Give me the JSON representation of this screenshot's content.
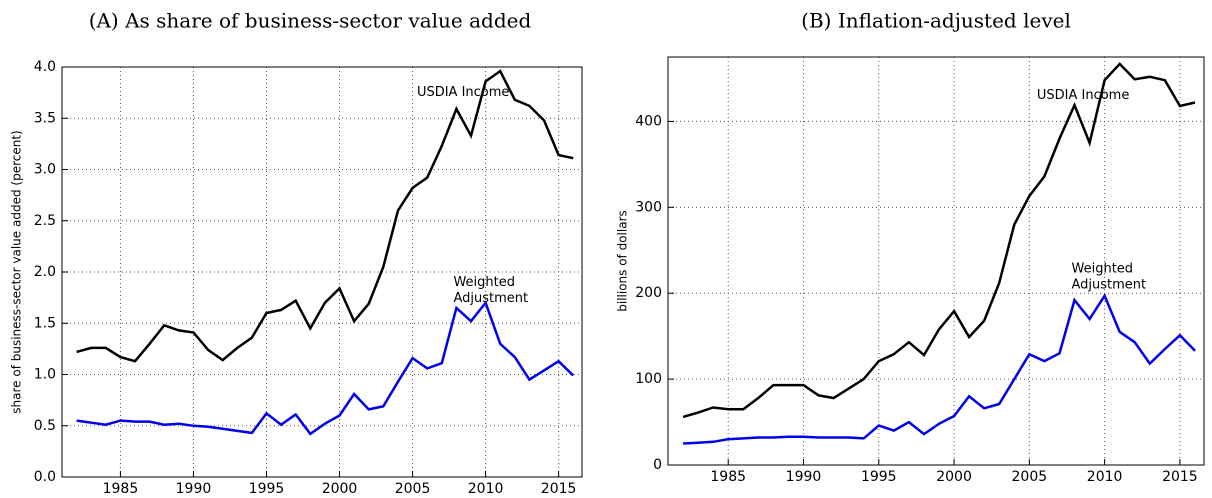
{
  "chart_data": [
    {
      "type": "line",
      "title": "(A) As share of business-sector value added",
      "y_label": "share of business-sector value added (percent)",
      "x": [
        1982,
        1983,
        1984,
        1985,
        1986,
        1987,
        1988,
        1989,
        1990,
        1991,
        1992,
        1993,
        1994,
        1995,
        1996,
        1997,
        1998,
        1999,
        2000,
        2001,
        2002,
        2003,
        2004,
        2005,
        2006,
        2007,
        2008,
        2009,
        2010,
        2011,
        2012,
        2013,
        2014,
        2015,
        2016
      ],
      "series": [
        {
          "name": "USDIA Income",
          "label_lines": [
            "USDIA Income"
          ],
          "color": "#000000",
          "values": [
            1.22,
            1.26,
            1.26,
            1.17,
            1.13,
            1.3,
            1.48,
            1.43,
            1.41,
            1.24,
            1.14,
            1.26,
            1.36,
            1.6,
            1.63,
            1.72,
            1.45,
            1.7,
            1.84,
            1.52,
            1.69,
            2.05,
            2.6,
            2.82,
            2.92,
            3.23,
            3.59,
            3.33,
            3.86,
            3.96,
            3.68,
            3.62,
            3.48,
            3.14,
            3.11
          ]
        },
        {
          "name": "Weighted Adjustment",
          "label_lines": [
            "Weighted",
            "Adjustment"
          ],
          "color": "#0000ee",
          "values": [
            0.55,
            0.53,
            0.51,
            0.55,
            0.54,
            0.54,
            0.51,
            0.52,
            0.5,
            0.49,
            0.47,
            0.45,
            0.43,
            0.62,
            0.51,
            0.61,
            0.42,
            0.52,
            0.6,
            0.81,
            0.66,
            0.69,
            0.93,
            1.16,
            1.06,
            1.11,
            1.65,
            1.52,
            1.7,
            1.3,
            1.17,
            0.95,
            1.04,
            1.13,
            0.99
          ]
        }
      ],
      "xlim": [
        1981,
        2016.6
      ],
      "xticks": [
        1985,
        1990,
        1995,
        2000,
        2005,
        2010,
        2015
      ],
      "ylim": [
        0,
        4
      ],
      "yticks": [
        {
          "value": 0,
          "label": "0.0"
        },
        0.5,
        {
          "value": 1,
          "label": "1.0"
        },
        1.5,
        {
          "value": 2,
          "label": "2.0"
        },
        2.5,
        {
          "value": 3,
          "label": "3.0"
        },
        3.5,
        {
          "value": 4,
          "label": "4.0"
        }
      ],
      "grid": true
    },
    {
      "type": "line",
      "title": "(B) Inflation-adjusted level",
      "y_label": "billions of dollars",
      "x": [
        1982,
        1983,
        1984,
        1985,
        1986,
        1987,
        1988,
        1989,
        1990,
        1991,
        1992,
        1993,
        1994,
        1995,
        1996,
        1997,
        1998,
        1999,
        2000,
        2001,
        2002,
        2003,
        2004,
        2005,
        2006,
        2007,
        2008,
        2009,
        2010,
        2011,
        2012,
        2013,
        2014,
        2015,
        2016
      ],
      "series": [
        {
          "name": "USDIA Income",
          "label_lines": [
            "USDIA Income"
          ],
          "color": "#000000",
          "values": [
            56,
            61,
            67,
            65,
            65,
            78,
            93,
            93,
            93,
            81,
            78,
            89,
            100,
            121,
            129,
            143,
            128,
            158,
            179,
            149,
            168,
            212,
            280,
            313,
            336,
            380,
            419,
            375,
            448,
            467,
            449,
            452,
            448,
            418,
            422
          ]
        },
        {
          "name": "Weighted Adjustment",
          "label_lines": [
            "Weighted",
            "Adjustment"
          ],
          "color": "#0000ee",
          "values": [
            25,
            26,
            27,
            30,
            31,
            32,
            32,
            33,
            33,
            32,
            32,
            32,
            31,
            46,
            40,
            50,
            36,
            48,
            57,
            80,
            66,
            71,
            100,
            129,
            121,
            130,
            192,
            170,
            197,
            155,
            143,
            118,
            135,
            151,
            133
          ]
        }
      ],
      "xlim": [
        1981,
        2016.6
      ],
      "xticks": [
        1985,
        1990,
        1995,
        2000,
        2005,
        2010,
        2015
      ],
      "ylim": [
        0,
        475
      ],
      "yticks": [
        0,
        100,
        200,
        300,
        400
      ],
      "grid": true
    }
  ]
}
